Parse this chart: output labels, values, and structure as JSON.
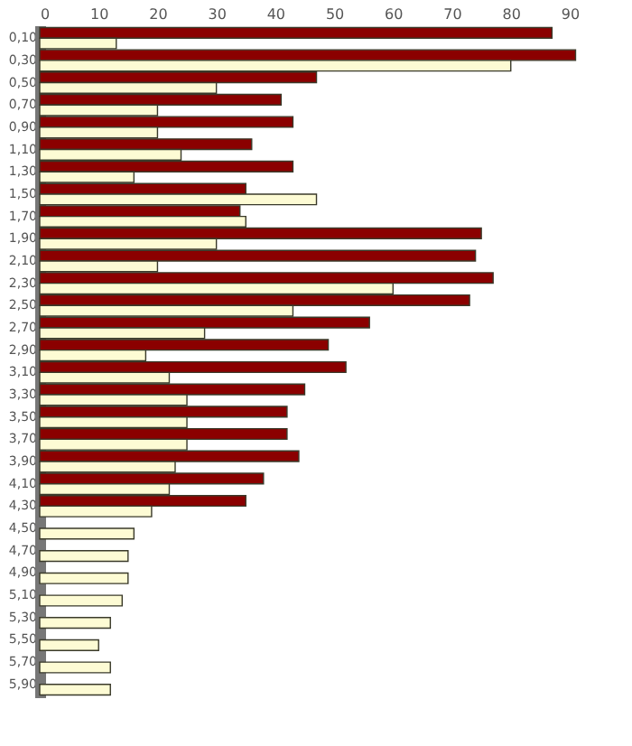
{
  "chart_data": {
    "type": "bar",
    "orientation": "horizontal",
    "categories": [
      "0,10",
      "0,30",
      "0,50",
      "0,70",
      "0,90",
      "1,10",
      "1,30",
      "1,50",
      "1,70",
      "1,90",
      "2,10",
      "2,30",
      "2,50",
      "2,70",
      "2,90",
      "3,10",
      "3,30",
      "3,50",
      "3,70",
      "3,90",
      "4,10",
      "4,30",
      "4,50",
      "4,70",
      "4,90",
      "5,10",
      "5,30",
      "5,50",
      "5,70",
      "5,90"
    ],
    "series": [
      {
        "color": "#8b0000",
        "values": [
          87,
          91,
          47,
          41,
          43,
          36,
          43,
          35,
          34,
          75,
          74,
          77,
          73,
          56,
          49,
          52,
          45,
          42,
          42,
          44,
          38,
          35,
          null,
          null,
          null,
          null,
          null,
          null,
          null,
          null
        ]
      },
      {
        "color": "#fdfbd4",
        "values": [
          13,
          80,
          30,
          20,
          20,
          24,
          16,
          47,
          35,
          30,
          20,
          60,
          43,
          28,
          18,
          22,
          25,
          25,
          25,
          23,
          22,
          19,
          16,
          15,
          15,
          14,
          12,
          10,
          12,
          12
        ]
      }
    ],
    "xlim": [
      0,
      92
    ],
    "xticks": [
      0,
      10,
      20,
      30,
      40,
      50,
      60,
      70,
      80,
      90
    ],
    "grid": false
  }
}
